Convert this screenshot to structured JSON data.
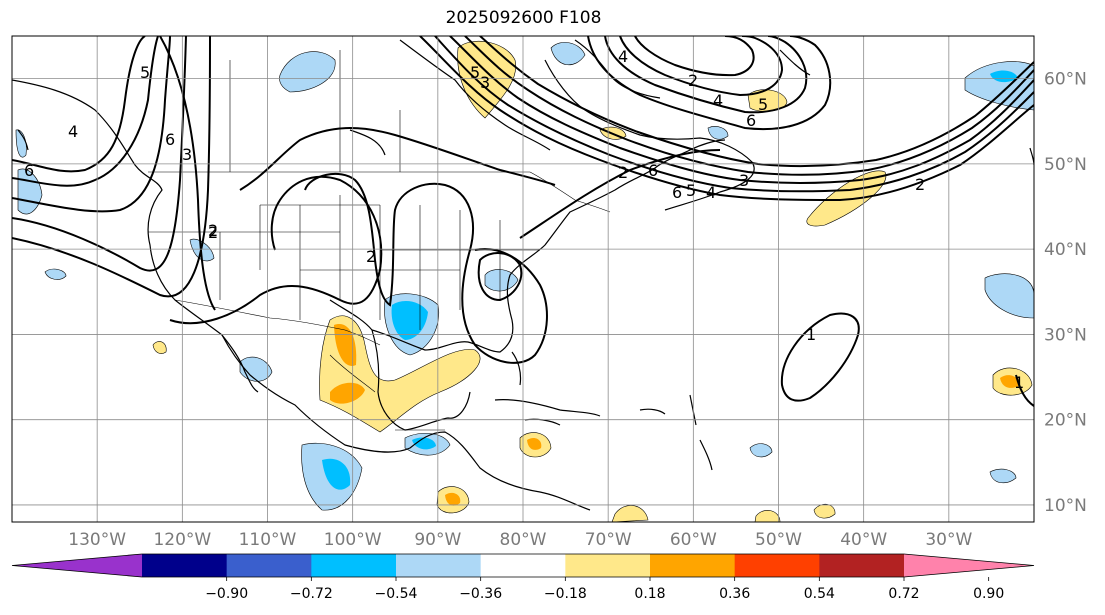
{
  "title": "2025092600 F108",
  "map": {
    "lon_range": [
      -140,
      -20
    ],
    "lat_range": [
      8,
      65
    ],
    "lon_ticks": [
      {
        "value": -130,
        "label": "130°W"
      },
      {
        "value": -120,
        "label": "120°W"
      },
      {
        "value": -110,
        "label": "110°W"
      },
      {
        "value": -100,
        "label": "100°W"
      },
      {
        "value": -90,
        "label": "90°W"
      },
      {
        "value": -80,
        "label": "80°W"
      },
      {
        "value": -70,
        "label": "70°W"
      },
      {
        "value": -60,
        "label": "60°W"
      },
      {
        "value": -50,
        "label": "50°W"
      },
      {
        "value": -40,
        "label": "40°W"
      },
      {
        "value": -30,
        "label": "30°W"
      }
    ],
    "lat_ticks": [
      {
        "value": 10,
        "label": "10°N"
      },
      {
        "value": 20,
        "label": "20°N"
      },
      {
        "value": 30,
        "label": "30°N"
      },
      {
        "value": 40,
        "label": "40°N"
      },
      {
        "value": 50,
        "label": "50°N"
      },
      {
        "value": 60,
        "label": "60°N"
      }
    ],
    "grid": true,
    "contour_labels": [
      "6",
      "5",
      "4",
      "3",
      "2",
      "6",
      "2",
      "3",
      "4",
      "5",
      "6",
      "2",
      "4",
      "5",
      "6",
      "2",
      "6",
      "5",
      "4",
      "3",
      "2",
      "2",
      "1",
      "1"
    ]
  },
  "colorbar": {
    "colors": [
      "#9932cc",
      "#00008b",
      "#3a5fcd",
      "#00bfff",
      "#add8f6",
      "#ffffff",
      "#ffe88a",
      "#ffa500",
      "#ff4000",
      "#b22222",
      "#ff82ab"
    ],
    "tick_labels": [
      "−0.90",
      "−0.72",
      "−0.54",
      "−0.36",
      "−0.18",
      "0.18",
      "0.36",
      "0.54",
      "0.72",
      "0.90"
    ],
    "extend": "both"
  }
}
